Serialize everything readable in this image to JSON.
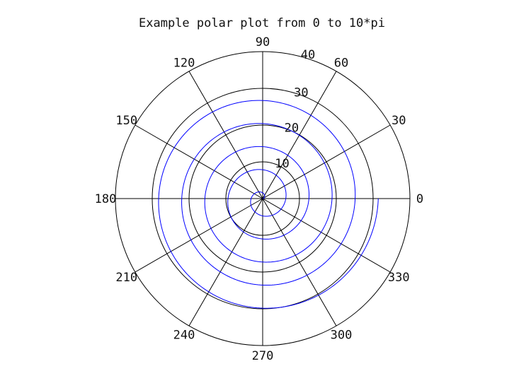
{
  "chart_data": {
    "type": "line",
    "subtype": "polar",
    "title": "Example polar plot from 0 to 10*pi",
    "theta_range": [
      0,
      "10*pi"
    ],
    "r_max": 40,
    "radial_ticks": [
      10,
      20,
      30,
      40
    ],
    "radial_tick_labels": [
      "10",
      "20",
      "30",
      "40"
    ],
    "angle_ticks_deg": [
      0,
      30,
      60,
      90,
      120,
      150,
      180,
      210,
      240,
      270,
      300,
      330
    ],
    "angle_tick_labels": [
      "0",
      "30",
      "60",
      "90",
      "120",
      "150",
      "180",
      "210",
      "240",
      "270",
      "300",
      "330"
    ],
    "grid": true,
    "series": [
      {
        "color": "#0000ff",
        "x_deg_range": [
          0,
          1800
        ],
        "r_range": [
          0,
          31.4
        ]
      }
    ]
  }
}
